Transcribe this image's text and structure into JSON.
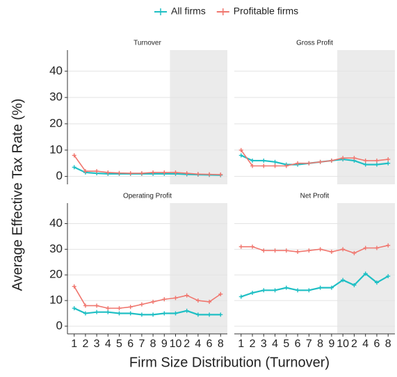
{
  "chart_data": {
    "type": "line",
    "xlabel": "Firm Size Distribution (Turnover)",
    "ylabel": "Average Effective Tax Rate (%)",
    "categories": [
      "1",
      "2",
      "3",
      "4",
      "5",
      "6",
      "7",
      "8",
      "9",
      "10",
      "2",
      "4",
      "6",
      "8"
    ],
    "ylim": [
      -3,
      48
    ],
    "yticks": [
      0,
      10,
      20,
      30,
      40
    ],
    "grid": true,
    "series": [
      {
        "name": "All firms",
        "color": "#1fbfc4"
      },
      {
        "name": "Profitable firms",
        "color": "#f0766e"
      }
    ],
    "panels": [
      {
        "title": "Turnover",
        "values": [
          [
            3.5,
            1.5,
            1.2,
            1,
            1,
            1,
            1,
            1,
            1,
            1,
            0.8,
            0.7,
            0.6,
            0.5
          ],
          [
            8,
            2,
            2,
            1.5,
            1.3,
            1.2,
            1.2,
            1.5,
            1.5,
            1.5,
            1.2,
            0.9,
            0.8,
            0.7
          ]
        ]
      },
      {
        "title": "Gross Profit",
        "values": [
          [
            8,
            6,
            6,
            5.5,
            4.5,
            4.5,
            5,
            5.5,
            6,
            6.5,
            6,
            4.5,
            4.5,
            5
          ],
          [
            10,
            4,
            4,
            4,
            4,
            5,
            5,
            5.5,
            6,
            7,
            7,
            6,
            6,
            6.5
          ]
        ]
      },
      {
        "title": "Operating Profit",
        "values": [
          [
            7,
            5,
            5.5,
            5.5,
            5,
            5,
            4.5,
            4.5,
            5,
            5,
            6,
            4.5,
            4.5,
            4.5
          ],
          [
            15.5,
            8,
            8,
            7,
            7,
            7.5,
            8.5,
            9.5,
            10.5,
            11,
            12,
            10,
            9.5,
            12.5
          ]
        ]
      },
      {
        "title": "Net Profit",
        "values": [
          [
            11.5,
            13,
            14,
            14,
            15,
            14,
            14,
            15,
            15,
            18,
            16,
            20.5,
            17,
            19.5
          ],
          [
            31,
            31,
            29.5,
            29.5,
            29.5,
            29,
            29.5,
            30,
            29,
            30,
            28.5,
            30.5,
            30.5,
            31.5
          ]
        ]
      }
    ]
  }
}
